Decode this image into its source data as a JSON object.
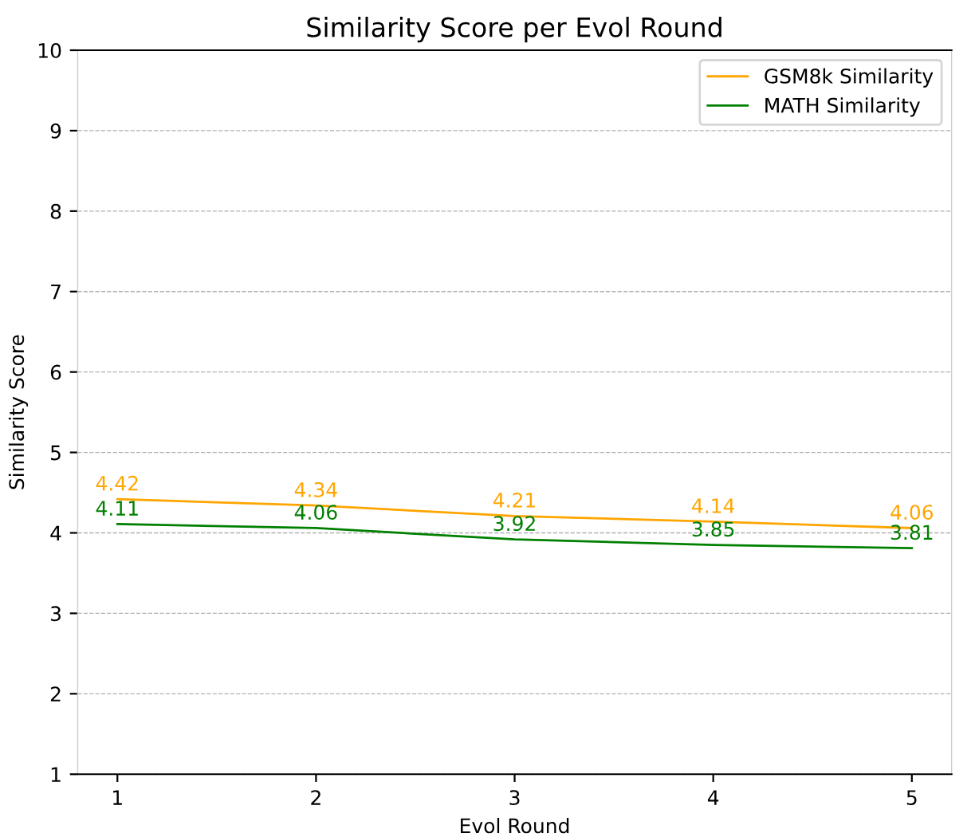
{
  "chart_data": {
    "type": "line",
    "title": "Similarity Score per Evol Round",
    "xlabel": "Evol Round",
    "ylabel": "Similarity Score",
    "x": [
      1,
      2,
      3,
      4,
      5
    ],
    "series": [
      {
        "name": "GSM8k Similarity",
        "color": "#ffa500",
        "values": [
          4.42,
          4.34,
          4.21,
          4.14,
          4.06
        ]
      },
      {
        "name": "MATH Similarity",
        "color": "#008000",
        "values": [
          4.11,
          4.06,
          3.92,
          3.85,
          3.81
        ]
      }
    ],
    "xlim": [
      0.8,
      5.2
    ],
    "xticks": [
      1,
      2,
      3,
      4,
      5
    ],
    "ylim": [
      1,
      10
    ],
    "yticks": [
      1,
      2,
      3,
      4,
      5,
      6,
      7,
      8,
      9,
      10
    ],
    "grid": "y",
    "legend": "top right",
    "data_labels": true,
    "marker": "none",
    "line_style": "solid"
  }
}
